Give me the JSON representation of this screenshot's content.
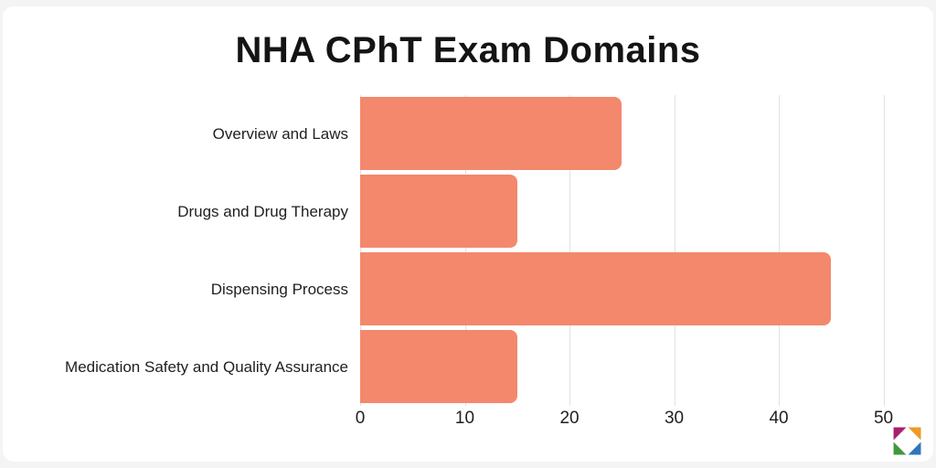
{
  "page": {
    "background": "#f4f4f5",
    "card_color": "#ffffff"
  },
  "chart_data": {
    "type": "bar",
    "orientation": "horizontal",
    "title": "NHA CPhT Exam Domains",
    "categories": [
      "Overview and Laws",
      "Drugs and Drug Therapy",
      "Dispensing Process",
      "Medication Safety and Quality Assurance"
    ],
    "values": [
      25,
      15,
      45,
      15
    ],
    "x_ticks": [
      0,
      10,
      20,
      30,
      40,
      50
    ],
    "xlim": [
      0,
      51
    ],
    "grid": true,
    "legend": false,
    "bar_color": "#f4886c",
    "gridline_color": "#e2e2e2",
    "text_color": "#1f1f1f"
  },
  "logo": {
    "name": "aes-pinwheel-logo",
    "colors": {
      "top_left": "#a4216d",
      "top_right": "#ed9b25",
      "bottom_left": "#41983b",
      "bottom_right": "#2e77bc"
    }
  }
}
